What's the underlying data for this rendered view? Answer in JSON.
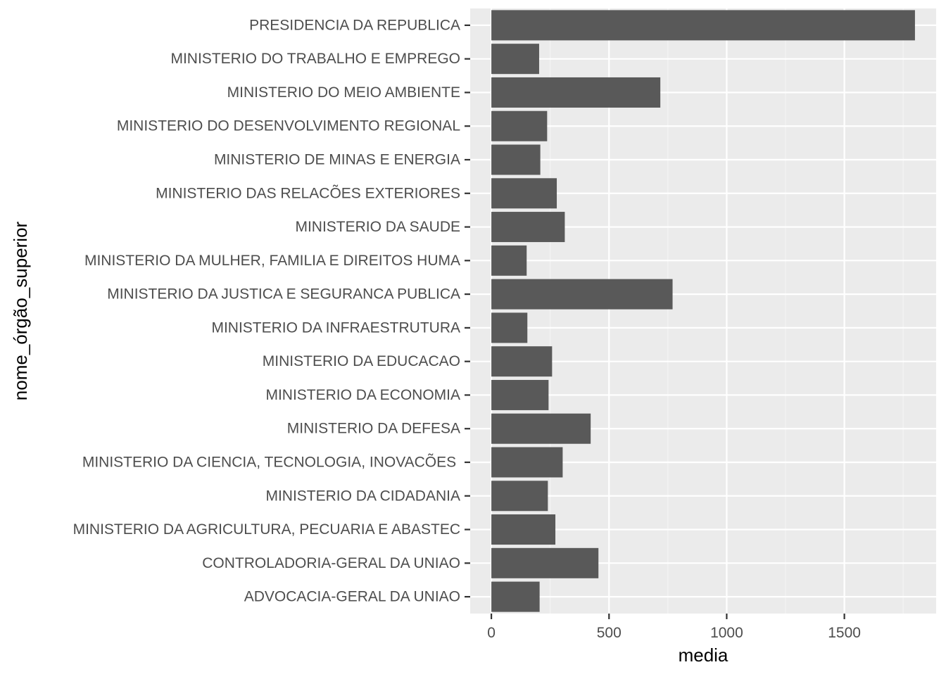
{
  "chart_data": {
    "type": "bar",
    "orientation": "horizontal",
    "categories": [
      "ADVOCACIA-GERAL DA UNIAO",
      "CONTROLADORIA-GERAL DA UNIAO",
      "MINISTERIO DA AGRICULTURA, PECUARIA E ABASTEC",
      "MINISTERIO DA CIDADANIA",
      "MINISTERIO DA CIENCIA, TECNOLOGIA, INOVACÕES ",
      "MINISTERIO DA DEFESA",
      "MINISTERIO DA ECONOMIA",
      "MINISTERIO DA EDUCACAO",
      "MINISTERIO DA INFRAESTRUTURA",
      "MINISTERIO DA JUSTICA E SEGURANCA PUBLICA",
      "MINISTERIO DA MULHER, FAMILIA E DIREITOS HUMA",
      "MINISTERIO DA SAUDE",
      "MINISTERIO DAS RELACÕES EXTERIORES",
      "MINISTERIO DE MINAS E ENERGIA",
      "MINISTERIO DO DESENVOLVIMENTO REGIONAL",
      "MINISTERIO DO MEIO AMBIENTE",
      "MINISTERIO DO TRABALHO E EMPREGO",
      "PRESIDENCIA DA REPUBLICA"
    ],
    "values": [
      205,
      455,
      272,
      240,
      303,
      422,
      243,
      258,
      153,
      770,
      150,
      312,
      278,
      208,
      237,
      718,
      203,
      1800
    ],
    "xlabel": "media",
    "ylabel": "nome_órgão_superior",
    "xlim": [
      -90,
      1890
    ],
    "xticks": [
      0,
      500,
      1000,
      1500
    ],
    "xtick_labels": [
      "0",
      "500",
      "1000",
      "1500"
    ],
    "grid": true,
    "colors": {
      "bar": "#595959",
      "panel": "#ebebeb",
      "grid_major": "#ffffff",
      "grid_minor": "#f5f5f5",
      "tick_label": "#4d4d4d",
      "tick_mark": "#333333",
      "axis_title": "#000000"
    }
  }
}
